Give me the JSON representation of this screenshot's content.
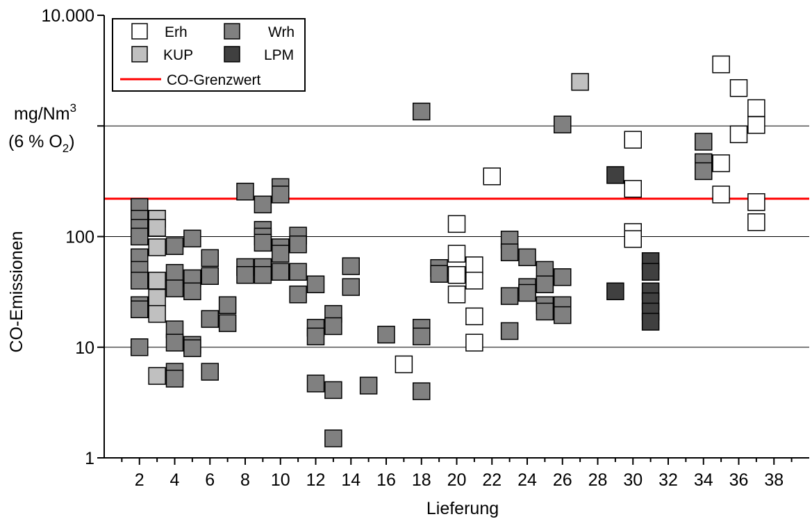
{
  "chart_data": {
    "type": "scatter",
    "x_label": "Lieferung",
    "y_label": "CO-Emissionen",
    "y_unit_line1_base": "mg/Nm",
    "y_unit_line1_sup": "3",
    "y_unit_line2_pre": "(6 % O",
    "y_unit_line2_sub": "2",
    "y_unit_line2_post": ")",
    "x_range": [
      0,
      40
    ],
    "x_ticks": [
      2,
      4,
      6,
      8,
      10,
      12,
      14,
      16,
      18,
      20,
      22,
      24,
      26,
      28,
      30,
      32,
      34,
      36,
      38
    ],
    "y_scale": "log",
    "y_range": [
      1,
      10000
    ],
    "y_ticks": [
      {
        "value": 1,
        "label": "1"
      },
      {
        "value": 10,
        "label": "10"
      },
      {
        "value": 100,
        "label": "100"
      },
      {
        "value": 10000,
        "label": "10.000"
      }
    ],
    "y_grid": [
      10,
      100,
      1000
    ],
    "grid": "horizontal",
    "legend": {
      "position": "top-left",
      "entries": [
        {
          "label": "Erh",
          "color": "#ffffff"
        },
        {
          "label": "Wrh",
          "color": "#808080"
        },
        {
          "label": "KUP",
          "color": "#c0c0c0"
        },
        {
          "label": "LPM",
          "color": "#404040"
        },
        {
          "label": "CO-Grenzwert",
          "color": "#ff0000"
        }
      ]
    },
    "reference_line": {
      "name": "CO-Grenzwert",
      "value": 220,
      "color": "#ff0000"
    },
    "series": [
      {
        "name": "Erh",
        "color": "#ffffff",
        "points": [
          [
            17,
            7
          ],
          [
            20,
            130
          ],
          [
            20,
            70
          ],
          [
            20,
            45
          ],
          [
            20,
            30
          ],
          [
            21,
            55
          ],
          [
            21,
            40
          ],
          [
            21,
            19
          ],
          [
            21,
            11
          ],
          [
            22,
            350
          ],
          [
            30,
            750
          ],
          [
            30,
            270
          ],
          [
            30,
            110
          ],
          [
            30,
            95
          ],
          [
            35,
            3600
          ],
          [
            35,
            460
          ],
          [
            35,
            240
          ],
          [
            36,
            2200
          ],
          [
            36,
            840
          ],
          [
            37,
            1450
          ],
          [
            37,
            1020
          ],
          [
            37,
            205
          ],
          [
            37,
            135
          ]
        ]
      },
      {
        "name": "Wrh",
        "color": "#808080",
        "points": [
          [
            2,
            185
          ],
          [
            2,
            145
          ],
          [
            2,
            120
          ],
          [
            2,
            100
          ],
          [
            2,
            65
          ],
          [
            2,
            50
          ],
          [
            2,
            40
          ],
          [
            2,
            24
          ],
          [
            2,
            22
          ],
          [
            2,
            10
          ],
          [
            4,
            82
          ],
          [
            4,
            47
          ],
          [
            4,
            34
          ],
          [
            4,
            14.5
          ],
          [
            4,
            11
          ],
          [
            4,
            6
          ],
          [
            4,
            5.2
          ],
          [
            5,
            96
          ],
          [
            5,
            42
          ],
          [
            5,
            32
          ],
          [
            5,
            10.5
          ],
          [
            5,
            9.8
          ],
          [
            6,
            64
          ],
          [
            6,
            44
          ],
          [
            6,
            18
          ],
          [
            6,
            6
          ],
          [
            7,
            24
          ],
          [
            7,
            16.5
          ],
          [
            8,
            255
          ],
          [
            8,
            53
          ],
          [
            8,
            45
          ],
          [
            9,
            195
          ],
          [
            9,
            115
          ],
          [
            9,
            100
          ],
          [
            9,
            88
          ],
          [
            9,
            53
          ],
          [
            9,
            45
          ],
          [
            10,
            280
          ],
          [
            10,
            240
          ],
          [
            10,
            80
          ],
          [
            10,
            70
          ],
          [
            10,
            48
          ],
          [
            11,
            102
          ],
          [
            11,
            85
          ],
          [
            11,
            48
          ],
          [
            11,
            30
          ],
          [
            12,
            37
          ],
          [
            12,
            15
          ],
          [
            12,
            12.5
          ],
          [
            12,
            4.7
          ],
          [
            13,
            20
          ],
          [
            13,
            15.5
          ],
          [
            13,
            4.1
          ],
          [
            13,
            1.5
          ],
          [
            14,
            54
          ],
          [
            14,
            35
          ],
          [
            15,
            4.5
          ],
          [
            16,
            13
          ],
          [
            18,
            1350
          ],
          [
            18,
            15
          ],
          [
            18,
            12.5
          ],
          [
            18,
            4
          ],
          [
            19,
            52
          ],
          [
            19,
            46
          ],
          [
            23,
            94
          ],
          [
            23,
            72
          ],
          [
            23,
            29
          ],
          [
            23,
            14
          ],
          [
            24,
            65
          ],
          [
            24,
            35
          ],
          [
            24,
            31
          ],
          [
            25,
            50
          ],
          [
            25,
            37
          ],
          [
            25,
            24
          ],
          [
            25,
            21
          ],
          [
            26,
            1030
          ],
          [
            26,
            43
          ],
          [
            26,
            24
          ],
          [
            26,
            19.5
          ],
          [
            34,
            720
          ],
          [
            34,
            470
          ],
          [
            34,
            390
          ]
        ]
      },
      {
        "name": "KUP",
        "color": "#c0c0c0",
        "points": [
          [
            3,
            145
          ],
          [
            3,
            120
          ],
          [
            3,
            80
          ],
          [
            3,
            40
          ],
          [
            3,
            28
          ],
          [
            3,
            20
          ],
          [
            3,
            5.5
          ],
          [
            27,
            2500
          ]
        ]
      },
      {
        "name": "LPM",
        "color": "#404040",
        "points": [
          [
            29,
            360
          ],
          [
            29,
            32
          ],
          [
            31,
            60
          ],
          [
            31,
            48
          ],
          [
            31,
            32
          ],
          [
            31,
            26
          ],
          [
            31,
            21
          ],
          [
            31,
            17
          ]
        ]
      }
    ]
  }
}
